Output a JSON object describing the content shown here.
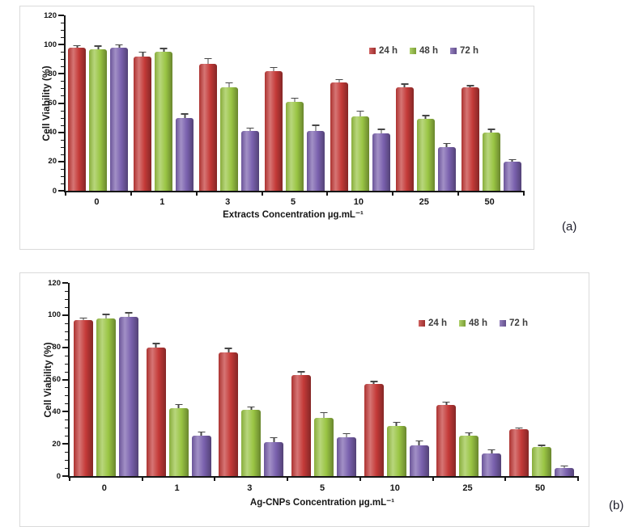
{
  "figure_labels": {
    "a": "(a)",
    "b": "(b)"
  },
  "colors": {
    "24h": "#c43a38",
    "48h": "#9ac544",
    "72h": "#7a61ae",
    "axis": "#161616",
    "error_bar": "#474747"
  },
  "chart_data": [
    {
      "type": "bar",
      "panel_label": "(a)",
      "title": "",
      "xlabel": "Extracts Concentration µg.mL⁻¹",
      "ylabel": "Cell Viability (%)",
      "ylim": [
        0,
        120
      ],
      "ytick_step": 20,
      "yminor_step": 5,
      "grid": false,
      "legend_position": "top-right-inside",
      "categories": [
        "0",
        "1",
        "3",
        "5",
        "10",
        "25",
        "50"
      ],
      "series": [
        {
          "name": "24 h",
          "color": "#c43a38",
          "values": [
            98,
            92,
            87,
            82,
            74,
            71,
            71
          ],
          "errors": [
            1,
            2.5,
            3,
            2,
            1.5,
            1.5,
            0.5
          ]
        },
        {
          "name": "48 h",
          "color": "#9ac544",
          "values": [
            97,
            95,
            71,
            61,
            51,
            49,
            40
          ],
          "errors": [
            1.5,
            2,
            2.5,
            2,
            3,
            2,
            1.5
          ]
        },
        {
          "name": "72 h",
          "color": "#7a61ae",
          "values": [
            98,
            50,
            41,
            41,
            39,
            30,
            20
          ],
          "errors": [
            1.5,
            2,
            1.5,
            3.5,
            2.5,
            2,
            1
          ]
        }
      ]
    },
    {
      "type": "bar",
      "panel_label": "(b)",
      "title": "",
      "xlabel": "Ag-CNPs Concentration µg.mL⁻¹",
      "ylabel": "Cell Viability (%)",
      "ylim": [
        0,
        120
      ],
      "ytick_step": 20,
      "yminor_step": 5,
      "grid": false,
      "legend_position": "top-right-inside",
      "categories": [
        "0",
        "1",
        "3",
        "5",
        "10",
        "25",
        "50"
      ],
      "series": [
        {
          "name": "24 h",
          "color": "#c43a38",
          "values": [
            97,
            80,
            77,
            63,
            57,
            44,
            29
          ],
          "errors": [
            0.7,
            2,
            2,
            1.5,
            1.5,
            1.5,
            0.5
          ]
        },
        {
          "name": "48 h",
          "color": "#9ac544",
          "values": [
            98,
            42,
            41,
            36,
            31,
            25,
            18
          ],
          "errors": [
            2,
            2,
            1.5,
            3,
            2,
            1.5,
            0.7
          ]
        },
        {
          "name": "72 h",
          "color": "#7a61ae",
          "values": [
            99,
            25,
            21,
            24,
            19,
            14,
            5
          ],
          "errors": [
            2,
            2,
            2.5,
            2,
            2.5,
            2,
            1
          ]
        }
      ]
    }
  ]
}
